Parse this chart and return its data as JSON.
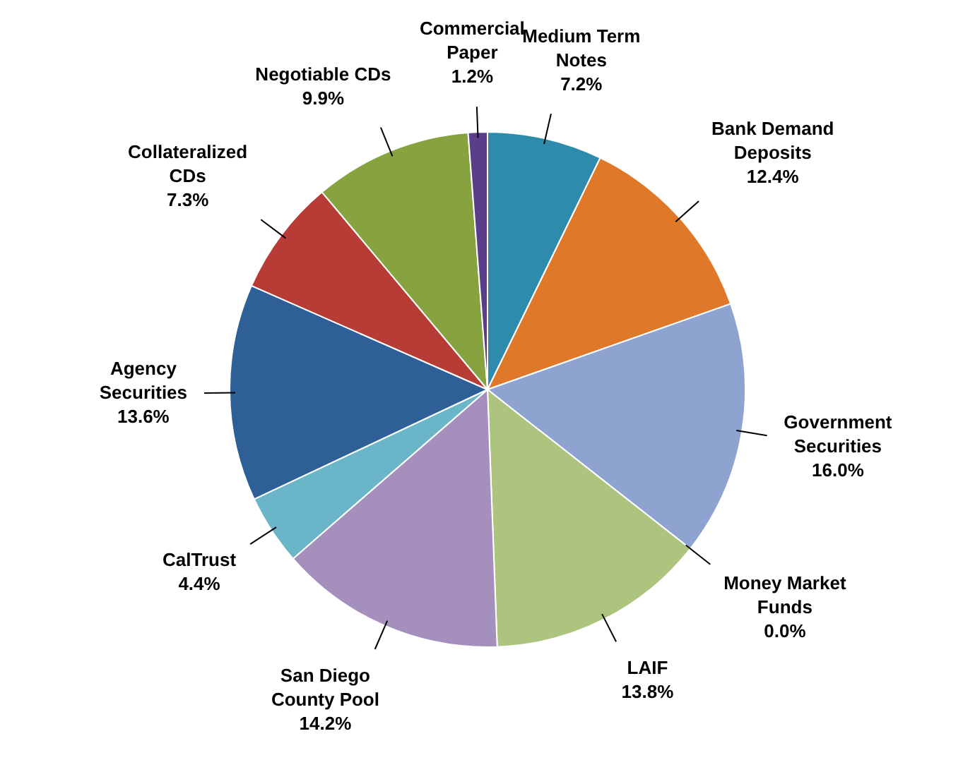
{
  "chart_data": {
    "type": "pie",
    "categories": [
      "Medium Term Notes",
      "Bank Demand Deposits",
      "Government Securities",
      "Money Market Funds",
      "LAIF",
      "San Diego County Pool",
      "CalTrust",
      "Agency Securities",
      "Collateralized CDs",
      "Negotiable CDs",
      "Commercial Paper"
    ],
    "values": [
      7.2,
      12.4,
      16.0,
      0.0,
      13.8,
      14.2,
      4.4,
      13.6,
      7.3,
      9.9,
      1.2
    ],
    "value_labels": [
      "7.2%",
      "12.4%",
      "16.0%",
      "0.0%",
      "13.8%",
      "14.2%",
      "4.4%",
      "13.6%",
      "7.3%",
      "9.9%",
      "1.2%"
    ],
    "colors": [
      "#2e8bab",
      "#e0782a",
      "#8ea3cf",
      "#6a8fc0",
      "#adc47e",
      "#a48fbd",
      "#6bb5c9",
      "#2e5f97",
      "#b83c36",
      "#86a340",
      "#5b3e8a"
    ],
    "legend": false
  }
}
